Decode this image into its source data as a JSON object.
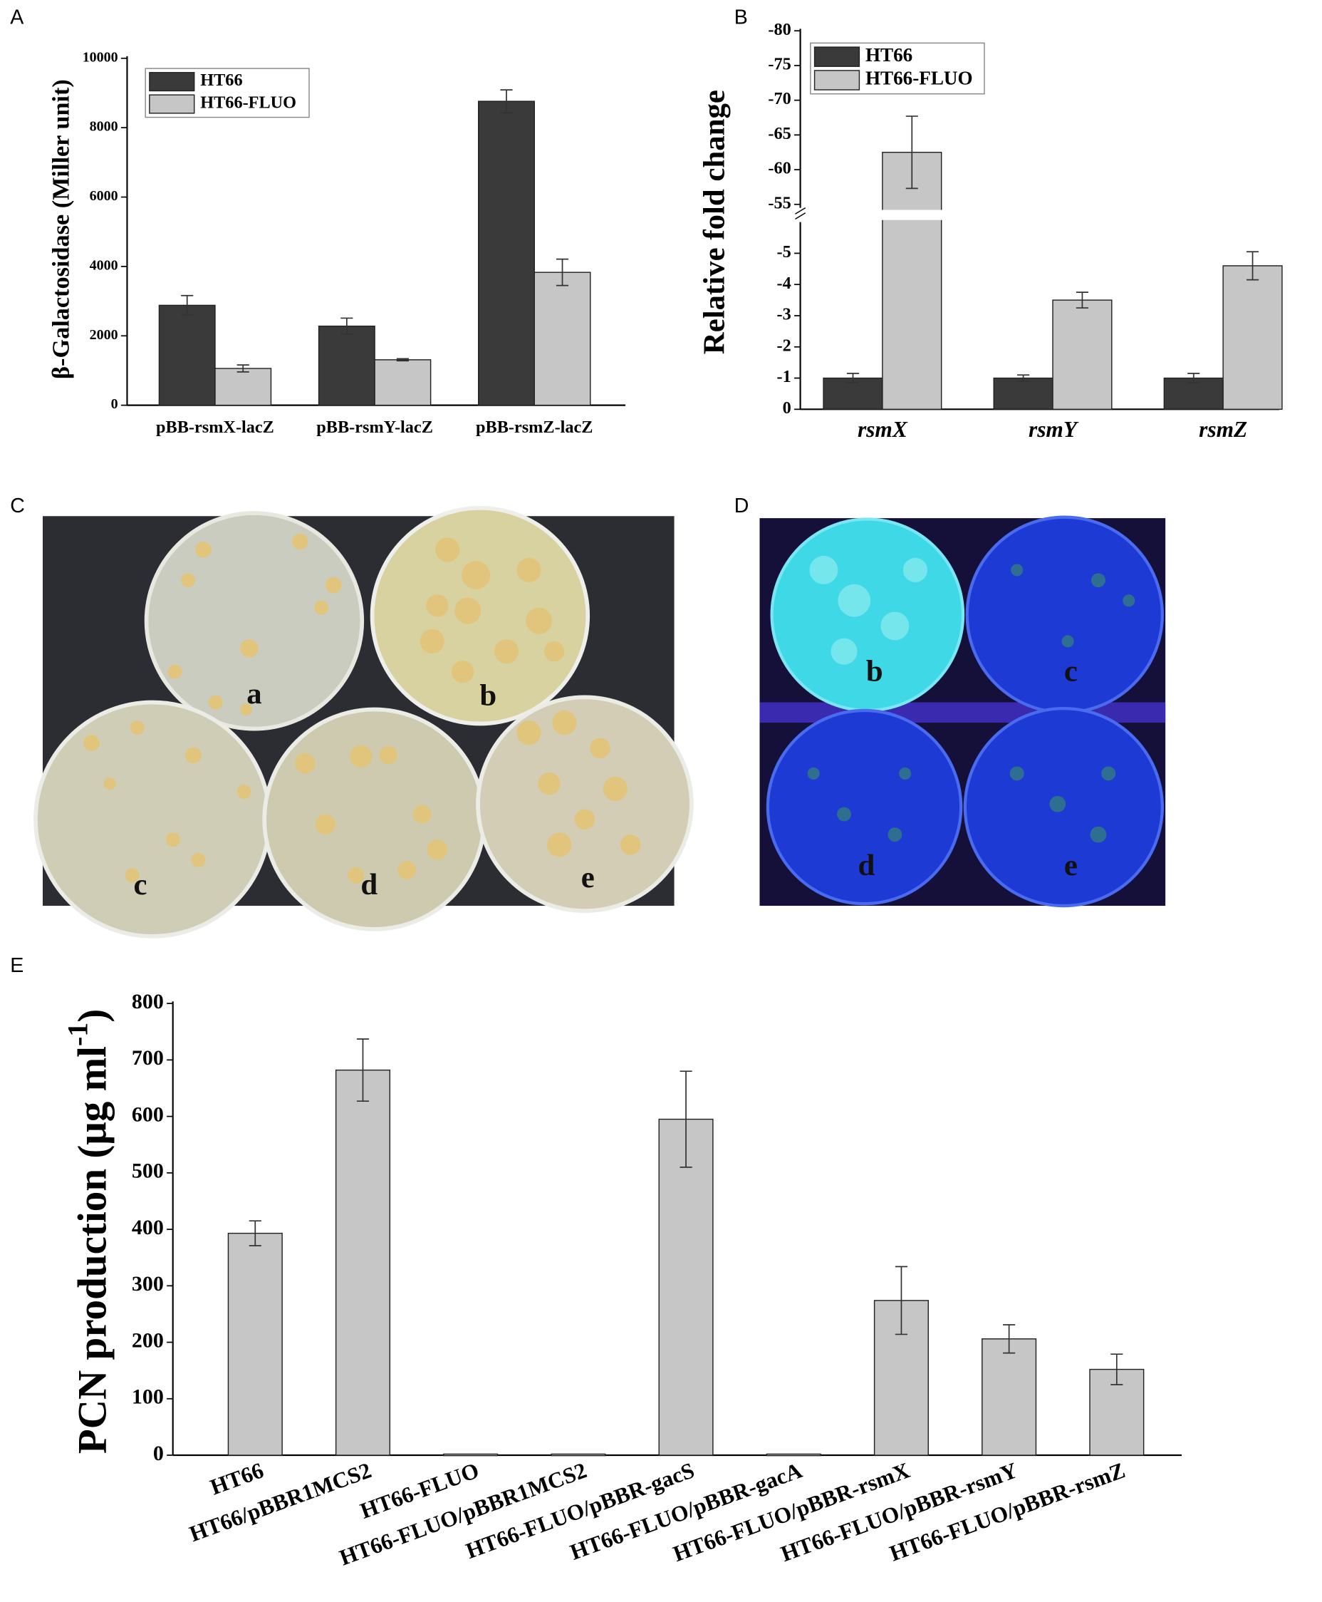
{
  "panel_labels": [
    "A",
    "B",
    "C",
    "D",
    "E"
  ],
  "photos": [
    {
      "labels": [
        "a",
        "b",
        "c",
        "d",
        "e"
      ]
    },
    {
      "labels": [
        "b",
        "c",
        "d",
        "e"
      ]
    }
  ],
  "chart_data": [
    {
      "type": "bar",
      "ylabel": "β-Galactosidase (Miller unit)",
      "categories": [
        "pBB-rsmX-lacZ",
        "pBB-rsmY-lacZ",
        "pBB-rsmZ-lacZ"
      ],
      "series": [
        {
          "name": "HT66",
          "color": "#3a3a3a",
          "values": [
            2880,
            2280,
            8760
          ],
          "errors": [
            280,
            230,
            330
          ]
        },
        {
          "name": "HT66-FLUO",
          "color": "#c6c6c6",
          "values": [
            1060,
            1310,
            3830
          ],
          "errors": [
            100,
            30,
            380
          ]
        }
      ],
      "ylim": [
        0,
        10000
      ],
      "yticks": [
        0,
        2000,
        4000,
        6000,
        8000,
        10000
      ],
      "legend": "upper-left"
    },
    {
      "type": "bar",
      "ylabel": "Relative fold change",
      "categories": [
        "rsmX",
        "rsmY",
        "rsmZ"
      ],
      "series": [
        {
          "name": "HT66",
          "color": "#3a3a3a",
          "values": [
            1,
            1,
            1
          ],
          "errors": [
            0.15,
            0.1,
            0.15
          ]
        },
        {
          "name": "HT66-FLUO",
          "color": "#c6c6c6",
          "values": [
            62.5,
            3.5,
            4.6
          ],
          "errors": [
            5.2,
            0.25,
            0.45
          ]
        }
      ],
      "ylim": [
        0,
        80
      ],
      "ybreak": [
        6,
        54.5
      ],
      "yticks": [
        0,
        {
          "value": 1,
          "label": "-1"
        },
        {
          "value": 2,
          "label": "-2"
        },
        {
          "value": 3,
          "label": "-3"
        },
        {
          "value": 4,
          "label": "-4"
        },
        {
          "value": 5,
          "label": "-5"
        },
        {
          "value": 55,
          "label": "-55"
        },
        {
          "value": 60,
          "label": "-60"
        },
        {
          "value": 65,
          "label": "-65"
        },
        {
          "value": 70,
          "label": "-70"
        },
        {
          "value": 75,
          "label": "-75"
        },
        {
          "value": 80,
          "label": "-80"
        }
      ],
      "legend": "upper-left"
    },
    {
      "type": "bar",
      "ylabel_parts": [
        "PCN production (μg ml",
        "-1",
        ")"
      ],
      "categories": [
        "HT66",
        "HT66/pBBR1MCS2",
        "HT66-FLUO",
        "HT66-FLUO/pBBR1MCS2",
        "HT66-FLUO/pBBR-gacS",
        "HT66-FLUO/pBBR-gacA",
        "HT66-FLUO/pBBR-rsmX",
        "HT66-FLUO/pBBR-rsmY",
        "HT66-FLUO/pBBR-rsmZ"
      ],
      "series": [
        {
          "color": "#c6c6c6",
          "values": [
            393,
            682,
            2,
            2,
            595,
            2,
            274,
            206,
            152
          ],
          "errors": [
            22,
            55,
            null,
            null,
            85,
            null,
            60,
            25,
            27
          ]
        }
      ],
      "ylim": [
        0,
        800
      ],
      "yticks": [
        0,
        100,
        200,
        300,
        400,
        500,
        600,
        700,
        800
      ]
    }
  ]
}
